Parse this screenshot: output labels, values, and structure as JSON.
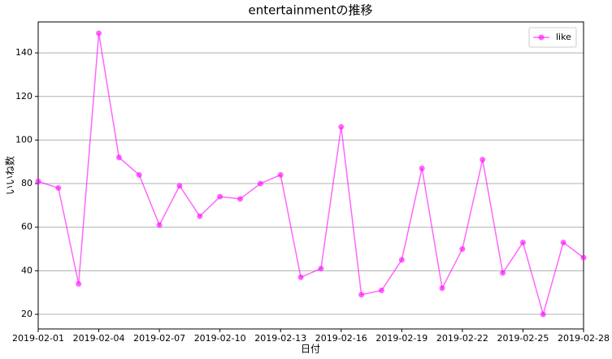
{
  "chart_data": {
    "type": "line",
    "title": "entertainmentの推移",
    "x_label": "日付",
    "y_label": "いいね数",
    "x": [
      "2019-02-01",
      "2019-02-02",
      "2019-02-03",
      "2019-02-04",
      "2019-02-05",
      "2019-02-06",
      "2019-02-07",
      "2019-02-08",
      "2019-02-09",
      "2019-02-10",
      "2019-02-11",
      "2019-02-12",
      "2019-02-13",
      "2019-02-14",
      "2019-02-15",
      "2019-02-16",
      "2019-02-17",
      "2019-02-18",
      "2019-02-19",
      "2019-02-20",
      "2019-02-21",
      "2019-02-22",
      "2019-02-23",
      "2019-02-24",
      "2019-02-25",
      "2019-02-26",
      "2019-02-27",
      "2019-02-28"
    ],
    "series": [
      {
        "name": "like",
        "color": "#ff00ff",
        "values": [
          81,
          78,
          34,
          149,
          92,
          84,
          61,
          79,
          65,
          74,
          73,
          80,
          84,
          37,
          41,
          106,
          29,
          31,
          45,
          87,
          32,
          50,
          91,
          39,
          53,
          20,
          53,
          46
        ]
      }
    ],
    "xlim": [
      "2019-02-01",
      "2019-02-28"
    ],
    "xticks": [
      "2019-02-01",
      "2019-02-04",
      "2019-02-07",
      "2019-02-10",
      "2019-02-13",
      "2019-02-16",
      "2019-02-19",
      "2019-02-22",
      "2019-02-25",
      "2019-02-28"
    ],
    "ylim": [
      13.3,
      154.2
    ],
    "yticks": [
      20,
      40,
      60,
      80,
      100,
      120,
      140
    ],
    "grid": true,
    "legend": "upper right"
  }
}
